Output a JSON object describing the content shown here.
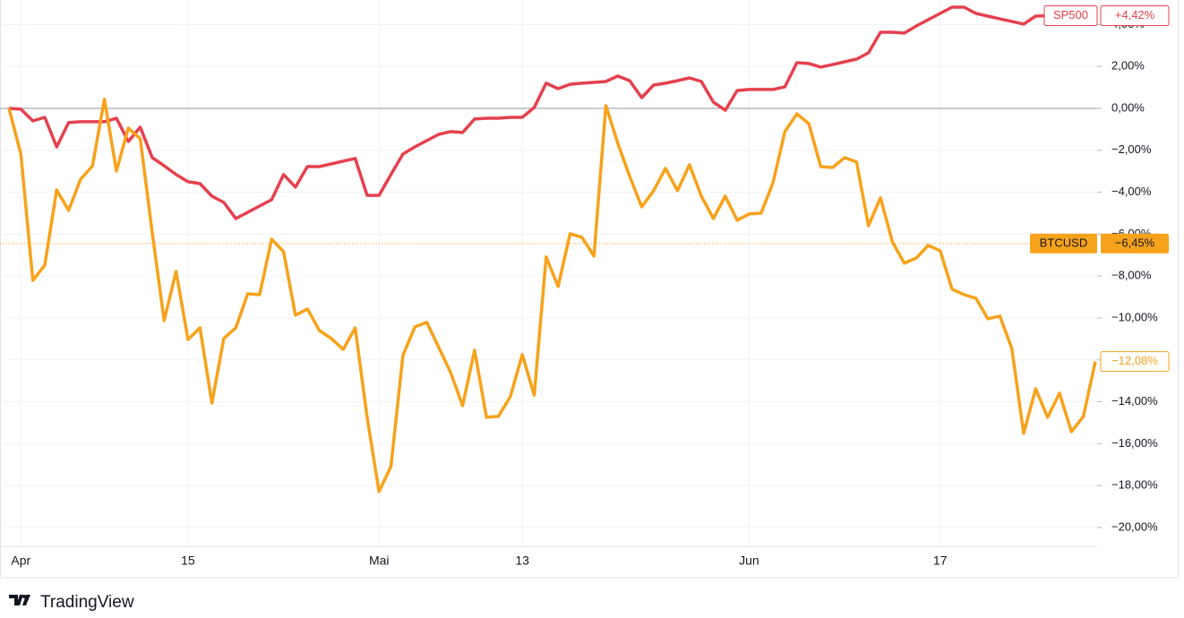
{
  "chart_data": {
    "type": "line",
    "categories": [
      null,
      "Apr",
      null,
      null,
      null,
      null,
      null,
      null,
      null,
      null,
      null,
      null,
      null,
      null,
      null,
      "15",
      null,
      null,
      null,
      null,
      null,
      null,
      null,
      null,
      null,
      null,
      null,
      null,
      null,
      null,
      null,
      "Mai",
      null,
      null,
      null,
      null,
      null,
      null,
      null,
      null,
      null,
      null,
      null,
      "13",
      null,
      null,
      null,
      null,
      null,
      null,
      null,
      null,
      null,
      null,
      null,
      null,
      null,
      null,
      null,
      null,
      null,
      null,
      "Jun",
      null,
      null,
      null,
      null,
      null,
      null,
      null,
      null,
      null,
      null,
      null,
      null,
      null,
      null,
      null,
      "17",
      null,
      null,
      null,
      null,
      null,
      null,
      null,
      null,
      null,
      null,
      null,
      null,
      null
    ],
    "series": [
      {
        "name": "SP500",
        "color": "#e5404e",
        "values": [
          0,
          -0.04,
          -0.6,
          -0.43,
          -1.84,
          -0.68,
          -0.64,
          -0.64,
          -0.64,
          -0.47,
          -1.58,
          -0.9,
          -2.35,
          -2.74,
          -3.16,
          -3.5,
          -3.59,
          -4.19,
          -4.49,
          -5.26,
          -4.96,
          -4.66,
          -4.36,
          -3.16,
          -3.76,
          -2.78,
          -2.78,
          -2.65,
          -2.52,
          -2.39,
          -4.15,
          -4.15,
          -3.16,
          -2.18,
          -1.84,
          -1.54,
          -1.24,
          -1.11,
          -1.15,
          -0.51,
          -0.47,
          -0.47,
          -0.43,
          -0.43,
          0.04,
          1.2,
          0.94,
          1.15,
          1.2,
          1.24,
          1.28,
          1.54,
          1.32,
          0.51,
          1.11,
          1.2,
          1.32,
          1.45,
          1.28,
          0.3,
          -0.09,
          0.85,
          0.9,
          0.9,
          0.9,
          1.03,
          2.18,
          2.14,
          1.97,
          2.09,
          2.22,
          2.35,
          2.65,
          3.63,
          3.63,
          3.59,
          3.93,
          4.23,
          4.53,
          4.83,
          4.83,
          4.53,
          4.4,
          4.27,
          4.15,
          4.02,
          4.4,
          4.42,
          4.42,
          4.42,
          4.42,
          4.42
        ],
        "last_label": {
          "value": 4.42,
          "label": "+4,42%"
        }
      },
      {
        "name": "BTCUSD",
        "color": "#f7a21b",
        "values": [
          0,
          -2.18,
          -8.21,
          -7.48,
          -3.89,
          -4.87,
          -3.38,
          -2.74,
          0.43,
          -2.99,
          -0.94,
          -1.45,
          -5.94,
          -10.13,
          -7.78,
          -11.03,
          -10.47,
          -14.06,
          -10.98,
          -10.47,
          -8.85,
          -8.89,
          -6.24,
          -6.84,
          -9.87,
          -9.57,
          -10.6,
          -10.98,
          -11.5,
          -10.47,
          -14.74,
          -18.29,
          -17.09,
          -11.79,
          -10.43,
          -10.21,
          -11.41,
          -12.61,
          -14.19,
          -11.54,
          -14.74,
          -14.7,
          -13.76,
          -11.75,
          -13.68,
          -7.09,
          -8.5,
          -5.98,
          -6.15,
          -7.05,
          0.13,
          -1.67,
          -3.25,
          -4.7,
          -3.93,
          -2.86,
          -3.93,
          -2.69,
          -4.19,
          -5.26,
          -4.19,
          -5.34,
          -5.04,
          -5,
          -3.55,
          -1.11,
          -0.26,
          -0.73,
          -2.78,
          -2.82,
          -2.35,
          -2.56,
          -5.6,
          -4.27,
          -6.37,
          -7.39,
          -7.14,
          -6.54,
          -6.79,
          -8.63,
          -8.89,
          -9.06,
          -10.04,
          -9.91,
          -11.45,
          -15.51,
          -13.38,
          -14.74,
          -13.59,
          -15.43,
          -14.7,
          -12.08
        ],
        "last_label": {
          "value": -12.08,
          "label": "−12,08%"
        }
      }
    ],
    "markers": [
      {
        "text": "BTCUSD",
        "value": -6.45,
        "label": "−6,45%",
        "color": "#f7a21b"
      }
    ],
    "ylim": [
      -20.9,
      5.17
    ],
    "yticks": [
      {
        "value": 4,
        "label": "4,00%"
      },
      {
        "value": 2,
        "label": "2,00%"
      },
      {
        "value": 0,
        "label": "0,00%"
      },
      {
        "value": -2,
        "label": "−2,00%"
      },
      {
        "value": -4,
        "label": "−4,00%"
      },
      {
        "value": -6,
        "label": "−6,00%"
      },
      {
        "value": -8,
        "label": "−8,00%"
      },
      {
        "value": -10,
        "label": "−10,00%"
      },
      {
        "value": -12,
        "label": "−12,00%"
      },
      {
        "value": -14,
        "label": "−14,00%"
      },
      {
        "value": -16,
        "label": "−16,00%"
      },
      {
        "value": -18,
        "label": "−18,00%"
      },
      {
        "value": -20,
        "label": "−20,00%"
      }
    ],
    "grid": true,
    "brand": "TradingView"
  }
}
